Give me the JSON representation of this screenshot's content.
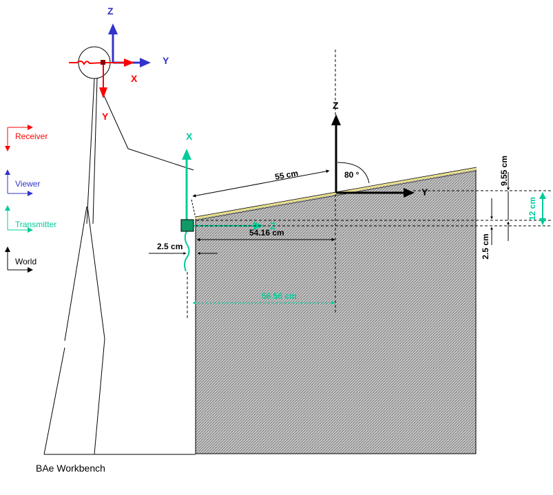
{
  "caption": "BAe Workbench",
  "colors": {
    "receiver": "#ff0000",
    "viewer": "#3333cc",
    "transmitter": "#00cc99",
    "world": "#000000",
    "bench_edge": "#e8e08a",
    "transmitter_box": "#119966"
  },
  "legend": [
    {
      "label": "Receiver",
      "color": "#ff0000"
    },
    {
      "label": "Viewer",
      "color": "#3333cc"
    },
    {
      "label": "Transmitter",
      "color": "#00cc99"
    },
    {
      "label": "World",
      "color": "#000000"
    }
  ],
  "frames": {
    "viewer": {
      "z": "Z",
      "y": "Y"
    },
    "receiver": {
      "x": "X",
      "y": "Y"
    },
    "transmitter": {
      "x": "X",
      "z": "Z"
    },
    "world": {
      "z": "Z",
      "y": "Y"
    }
  },
  "dimensions": {
    "surface_length": "55 cm",
    "tilt_angle": "80 °",
    "horizontal_black": "54.16 cm",
    "horizontal_teal": "56.56 cm",
    "offset_left": "2.5 cm",
    "vertical_top": "9.55 cm",
    "vertical_teal": "12 cm",
    "vertical_bottom": "2.5 cm"
  }
}
